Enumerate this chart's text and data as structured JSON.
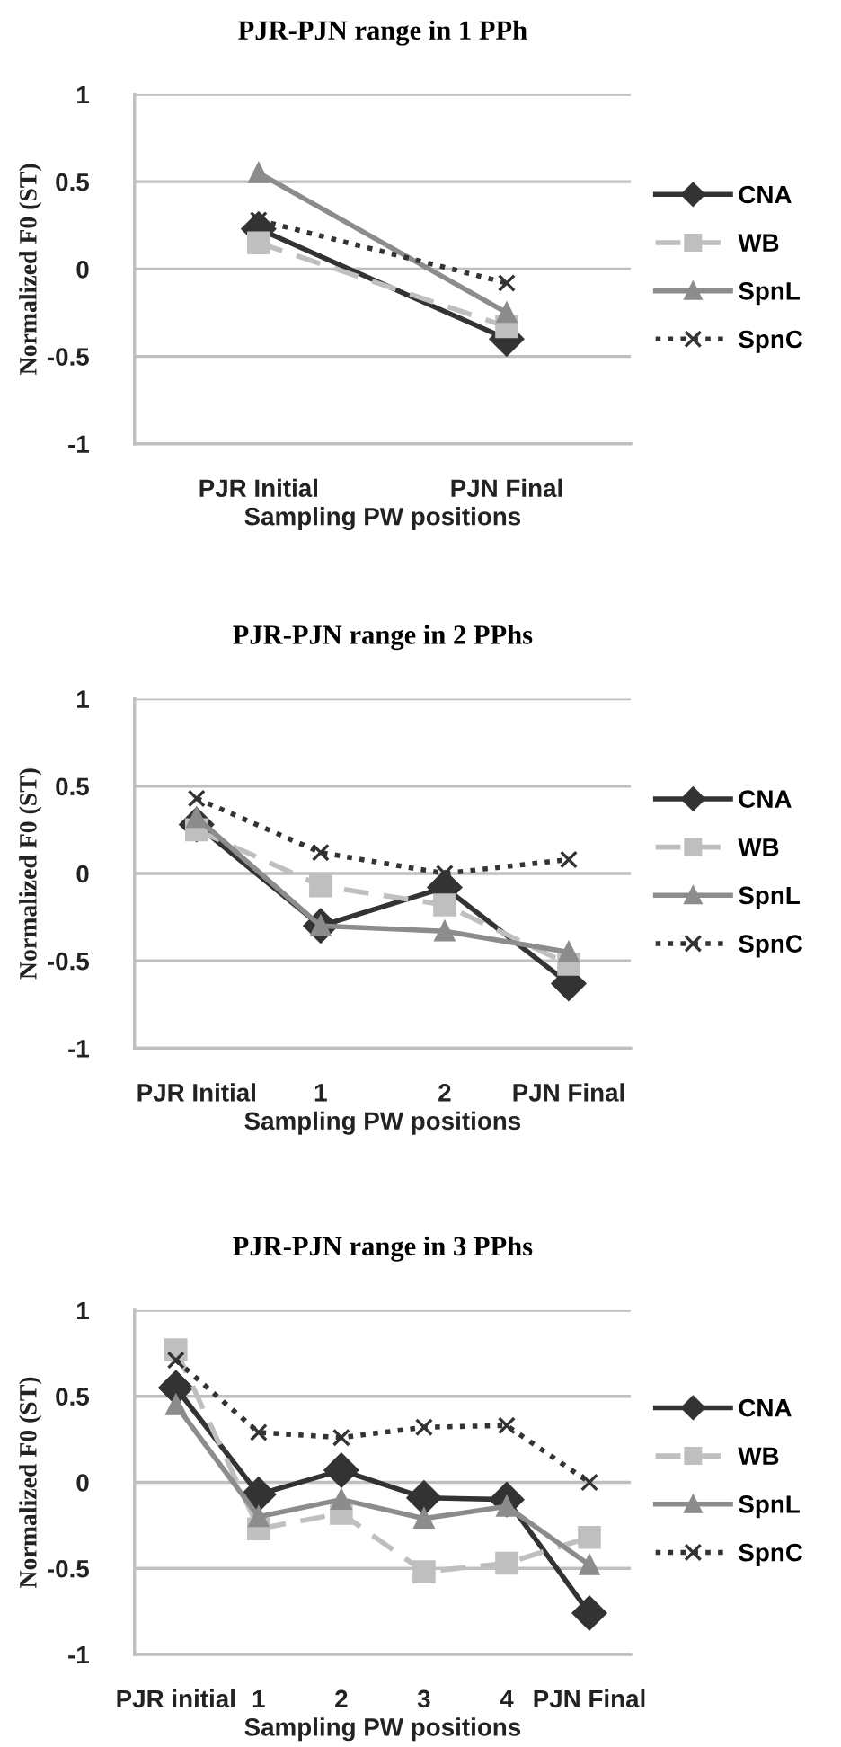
{
  "chart_data": [
    {
      "type": "line",
      "title": "PJR-PJN range in 1 PPh",
      "xlabel": "Sampling PW positions",
      "ylabel": "Normalized F0 (ST)",
      "categories": [
        "PJR Initial",
        "PJN Final"
      ],
      "ylim": [
        -1,
        1
      ],
      "yticks": [
        -1,
        -0.5,
        0,
        0.5,
        1
      ],
      "grid": "y",
      "legend": "right",
      "series": [
        {
          "name": "CNA",
          "color": "#333333",
          "marker": "diamond",
          "line_style": "solid",
          "values": [
            0.23,
            -0.4
          ]
        },
        {
          "name": "WB",
          "color": "#bfbfbf",
          "marker": "square",
          "line_style": "dashed",
          "values": [
            0.15,
            -0.33
          ]
        },
        {
          "name": "SpnL",
          "color": "#8c8c8c",
          "marker": "triangle",
          "line_style": "solid",
          "values": [
            0.55,
            -0.25
          ]
        },
        {
          "name": "SpnC",
          "color": "#333333",
          "marker": "cross",
          "line_style": "dotted",
          "values": [
            0.28,
            -0.08
          ]
        }
      ]
    },
    {
      "type": "line",
      "title": "PJR-PJN range in 2 PPhs",
      "xlabel": "Sampling PW positions",
      "ylabel": "Normalized F0 (ST)",
      "categories": [
        "PJR Initial",
        "1",
        "2",
        "PJN Final"
      ],
      "ylim": [
        -1,
        1
      ],
      "yticks": [
        -1,
        -0.5,
        0,
        0.5,
        1
      ],
      "grid": "y",
      "legend": "right",
      "series": [
        {
          "name": "CNA",
          "color": "#333333",
          "marker": "diamond",
          "line_style": "solid",
          "values": [
            0.28,
            -0.3,
            -0.08,
            -0.63
          ]
        },
        {
          "name": "WB",
          "color": "#bfbfbf",
          "marker": "square",
          "line_style": "dashed",
          "values": [
            0.25,
            -0.07,
            -0.18,
            -0.52
          ]
        },
        {
          "name": "SpnL",
          "color": "#8c8c8c",
          "marker": "triangle",
          "line_style": "solid",
          "values": [
            0.32,
            -0.3,
            -0.33,
            -0.45
          ]
        },
        {
          "name": "SpnC",
          "color": "#333333",
          "marker": "cross",
          "line_style": "dotted",
          "values": [
            0.43,
            0.12,
            0.0,
            0.08
          ]
        }
      ]
    },
    {
      "type": "line",
      "title": "PJR-PJN range in 3 PPhs",
      "xlabel": "Sampling PW positions",
      "ylabel": "Normalized F0 (ST)",
      "categories": [
        "PJR initial",
        "1",
        "2",
        "3",
        "4",
        "PJN Final"
      ],
      "ylim": [
        -1,
        1
      ],
      "yticks": [
        -1,
        -0.5,
        0,
        0.5,
        1
      ],
      "grid": "y",
      "legend": "right",
      "series": [
        {
          "name": "CNA",
          "color": "#333333",
          "marker": "diamond",
          "line_style": "solid",
          "values": [
            0.55,
            -0.07,
            0.07,
            -0.09,
            -0.1,
            -0.76
          ]
        },
        {
          "name": "WB",
          "color": "#bfbfbf",
          "marker": "square",
          "line_style": "dashed",
          "values": [
            0.77,
            -0.27,
            -0.18,
            -0.52,
            -0.47,
            -0.32
          ]
        },
        {
          "name": "SpnL",
          "color": "#8c8c8c",
          "marker": "triangle",
          "line_style": "solid",
          "values": [
            0.45,
            -0.2,
            -0.1,
            -0.21,
            -0.14,
            -0.48
          ]
        },
        {
          "name": "SpnC",
          "color": "#333333",
          "marker": "cross",
          "line_style": "dotted",
          "values": [
            0.71,
            0.29,
            0.26,
            0.32,
            0.33,
            0.0
          ]
        }
      ]
    }
  ]
}
